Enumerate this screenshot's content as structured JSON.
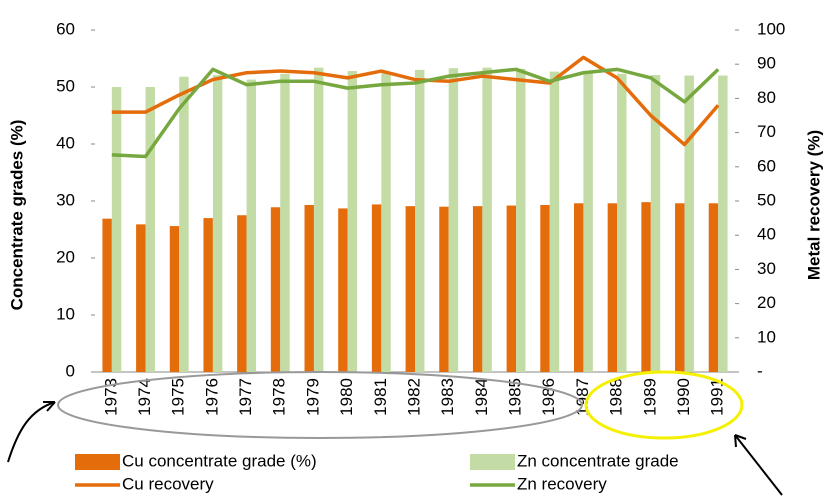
{
  "chart_data": {
    "type": "bar-line",
    "y_label": "Concentrate grades (%)",
    "y2_label": "Metal recovery (%)",
    "categories": [
      "1973",
      "1974",
      "1975",
      "1976",
      "1977",
      "1978",
      "1979",
      "1980",
      "1981",
      "1982",
      "1983",
      "1984",
      "1985",
      "1986",
      "1987",
      "1988",
      "1989",
      "1990",
      "1991"
    ],
    "series": [
      {
        "name": "Cu concentrate grade (%)",
        "type": "bar",
        "color": "#e46c0a",
        "values": [
          26.9,
          25.9,
          25.6,
          27.0,
          27.5,
          28.9,
          29.3,
          28.7,
          29.4,
          29.1,
          29.0,
          29.1,
          29.2,
          29.3,
          29.6,
          29.6,
          29.8,
          29.6,
          29.6
        ]
      },
      {
        "name": "Zn concentrate grade",
        "type": "bar",
        "color": "#c3dba4",
        "values": [
          50.0,
          50.0,
          51.8,
          52.1,
          51.3,
          52.3,
          53.4,
          52.8,
          52.6,
          53.0,
          53.3,
          53.4,
          53.2,
          52.7,
          52.6,
          52.3,
          52.1,
          52.0,
          52.0
        ]
      },
      {
        "name": "Cu recovery",
        "type": "line",
        "axis": "y2",
        "color": "#e46c0a",
        "values": [
          76,
          76,
          81,
          85.5,
          87.5,
          88,
          87.5,
          86,
          88,
          85.5,
          85,
          86.5,
          85.5,
          84.5,
          92,
          86,
          75,
          66.5,
          78
        ]
      },
      {
        "name": "Zn recovery",
        "type": "line",
        "axis": "y2",
        "color": "#77a83f",
        "values": [
          63.5,
          63,
          77,
          88.5,
          84,
          85,
          85,
          83,
          84,
          84.5,
          86.5,
          87.5,
          88.5,
          85,
          87.5,
          88.5,
          86,
          79,
          88.5
        ]
      }
    ],
    "ylim": [
      0,
      60
    ],
    "yticks": [
      0,
      10,
      20,
      30,
      40,
      50,
      60
    ],
    "y2lim": [
      0,
      100
    ],
    "y2ticks": [
      {
        "value": 0,
        "label": "-"
      },
      10,
      20,
      30,
      40,
      50,
      60,
      70,
      80,
      90,
      100
    ]
  }
}
